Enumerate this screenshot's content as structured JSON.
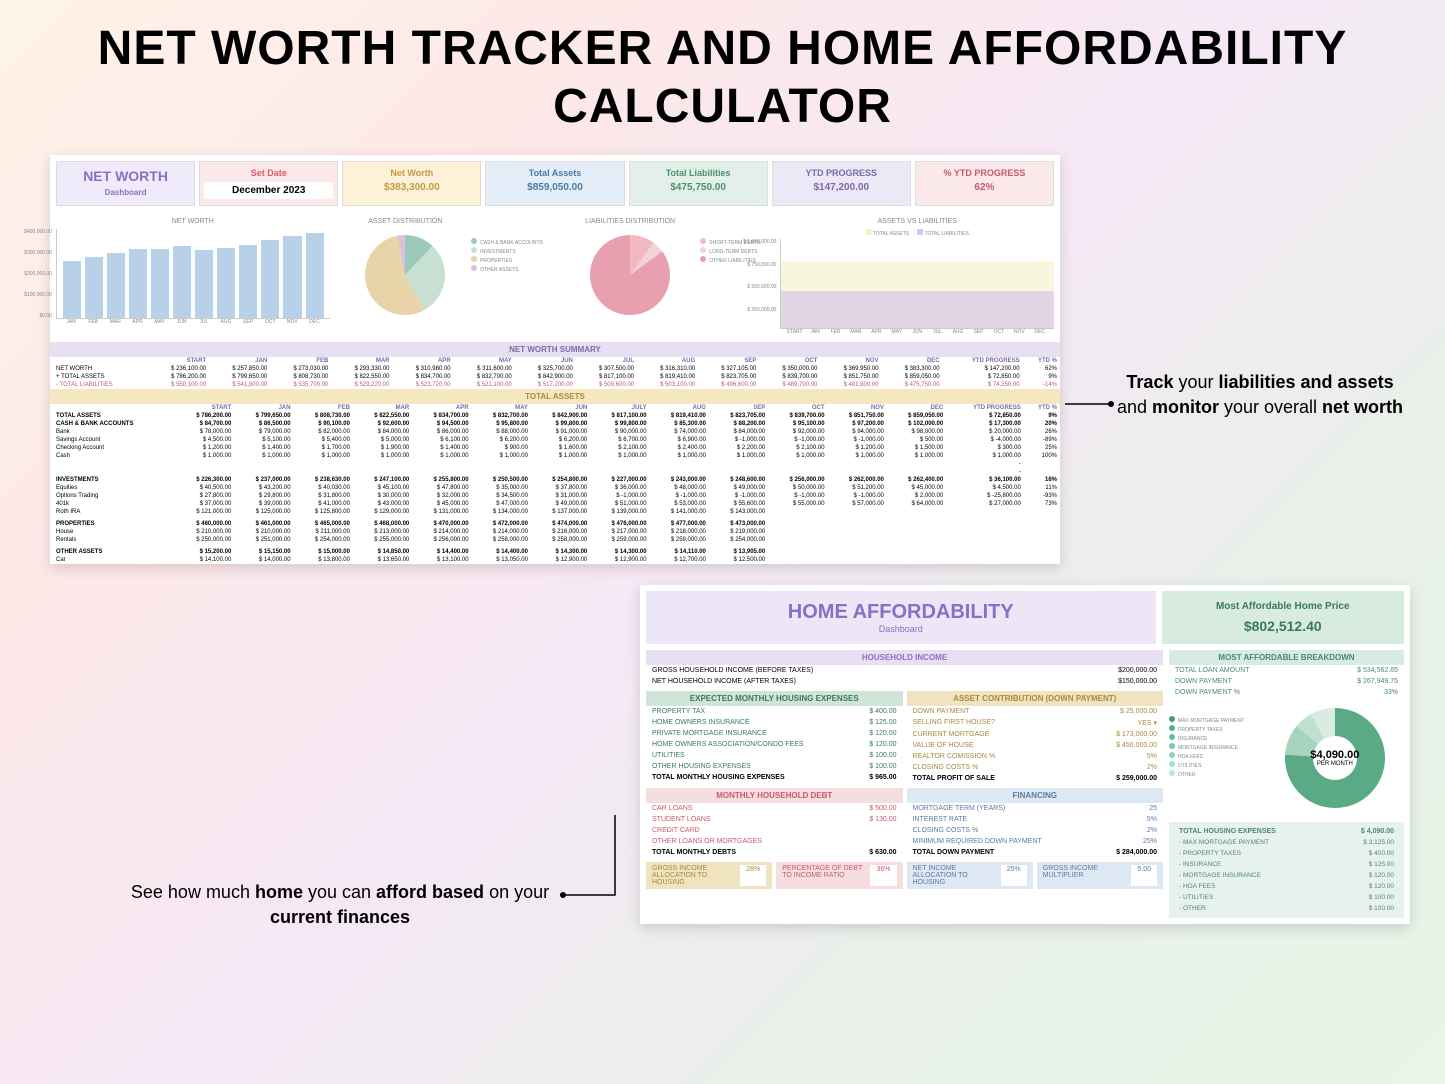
{
  "page_title": "NET WORTH TRACKER AND HOME AFFORDABILITY CALCULATOR",
  "callout_right": {
    "line1_pre": "Track",
    "line1_mid": " your ",
    "line1_b2": "liabilities and assets",
    "line2_mid": " and ",
    "line2_b": "monitor",
    "line2_post": " your overall ",
    "line3_b": "net worth"
  },
  "callout_left": {
    "pre": "See how much ",
    "b1": "home",
    "mid1": " you can ",
    "b2": "afford based",
    "mid2": " on your ",
    "b3": "current finances"
  },
  "networth": {
    "dashboard_label": "NET WORTH",
    "dashboard_sub": "Dashboard",
    "cards": {
      "set_date": {
        "label": "Set Date",
        "value": "December 2023"
      },
      "net_worth": {
        "label": "Net Worth",
        "value": "$383,300.00"
      },
      "total_assets": {
        "label": "Total Assets",
        "value": "$859,050.00"
      },
      "total_liabilities": {
        "label": "Total Liabilities",
        "value": "$475,750.00"
      },
      "ytd_progress": {
        "label": "YTD PROGRESS",
        "value": "$147,200.00"
      },
      "ytd_progress_pct": {
        "label": "% YTD PROGRESS",
        "value": "62%"
      }
    },
    "charts": {
      "networth_bar": {
        "title": "NET WORTH",
        "y_ticks": [
          "$400,000.00",
          "$300,000.00",
          "$200,000.00",
          "$100,000.00",
          "$0.00"
        ],
        "months": [
          "JAN",
          "FEB",
          "MAR",
          "APR",
          "MAY",
          "JUN",
          "JUL",
          "AUG",
          "SEP",
          "OCT",
          "NOV",
          "DEC"
        ],
        "values": [
          257850,
          273030,
          293330,
          310980,
          311600,
          325700,
          307500,
          316310,
          327105,
          350000,
          369950,
          383300
        ],
        "bar_color": "#b8d0e8"
      },
      "asset_pie": {
        "title": "ASSET DISTRIBUTION",
        "legend": [
          {
            "label": "CASH & BANK ACCOUNTS",
            "color": "#9cc9b8"
          },
          {
            "label": "INVESTMENTS",
            "color": "#c8e0d4"
          },
          {
            "label": "PROPERTIES",
            "color": "#e8d4a8"
          },
          {
            "label": "OTHER ASSETS",
            "color": "#d8c0e0"
          }
        ],
        "slices": [
          12,
          30,
          55,
          3
        ]
      },
      "liab_pie": {
        "title": "LIABILITIES DISTRIBUTION",
        "legend": [
          {
            "label": "SHORT-TERM DEBTS",
            "color": "#f4b8c0"
          },
          {
            "label": "LONG-TERM DEBTS",
            "color": "#f0d4d8"
          },
          {
            "label": "OTHER LIABILITIES",
            "color": "#e8a0b0"
          }
        ],
        "slices": [
          10,
          5,
          85
        ]
      },
      "assets_vs_liab": {
        "title": "ASSETS VS LIABILITIES",
        "y_ticks": [
          "$ 1,000,000.00",
          "$ 750,000.00",
          "$ 500,000.00",
          "$ 250,000.00",
          ""
        ],
        "legend": [
          {
            "label": "TOTAL ASSETS",
            "color": "#f5f0c8"
          },
          {
            "label": "TOTAL LIABILITIES",
            "color": "#d8c8e8"
          }
        ],
        "x_labels": [
          "START",
          "JAN",
          "FEB",
          "MAR",
          "APR",
          "MAY",
          "JUN",
          "JUL",
          "AUG",
          "SEP",
          "OCT",
          "NOV",
          "DEC"
        ]
      }
    },
    "summary": {
      "title": "NET WORTH SUMMARY",
      "columns": [
        "",
        "START",
        "JAN",
        "FEB",
        "MAR",
        "APR",
        "MAY",
        "JUN",
        "JUL",
        "AUG",
        "SEP",
        "OCT",
        "NOV",
        "DEC",
        "YTD PROGRESS",
        "YTD %"
      ],
      "rows": [
        {
          "label": "NET WORTH",
          "vals": [
            "236,100.00",
            "257,850.00",
            "273,030.00",
            "293,330.00",
            "310,980.00",
            "311,600.00",
            "325,700.00",
            "307,500.00",
            "316,310.00",
            "327,105.00",
            "350,000.00",
            "369,950.00",
            "383,300.00",
            "147,200.00",
            "62%"
          ]
        },
        {
          "label": "+ TOTAL ASSETS",
          "vals": [
            "786,200.00",
            "799,650.00",
            "808,730.00",
            "822,550.00",
            "834,700.00",
            "832,700.00",
            "842,900.00",
            "817,100.00",
            "819,410.00",
            "823,705.00",
            "839,700.00",
            "851,750.00",
            "859,050.00",
            "72,850.00",
            "9%"
          ]
        },
        {
          "label": "- TOTAL LIABILITIES",
          "vals": [
            "550,100.00",
            "541,800.00",
            "535,700.00",
            "529,220.00",
            "523,720.00",
            "521,100.00",
            "517,200.00",
            "509,600.00",
            "503,100.00",
            "496,600.00",
            "489,700.00",
            "481,800.00",
            "475,750.00",
            "74,350.00",
            "-14%"
          ],
          "cls": "red-text"
        }
      ]
    },
    "total_assets": {
      "title": "TOTAL ASSETS",
      "columns": [
        "",
        "START",
        "JAN",
        "FEB",
        "MAR",
        "APR",
        "MAY",
        "JUN",
        "JULY",
        "AUG",
        "SEP",
        "OCT",
        "NOV",
        "DEC",
        "YTD PROGRESS",
        "YTD %"
      ],
      "rows": [
        {
          "label": "TOTAL ASSETS",
          "vals": [
            "786,200.00",
            "799,650.00",
            "808,730.00",
            "822,550.00",
            "834,700.00",
            "832,700.00",
            "842,900.00",
            "817,100.00",
            "819,410.00",
            "823,705.00",
            "839,700.00",
            "851,750.00",
            "859,050.00",
            "72,850.00",
            "9%"
          ],
          "bold": true
        },
        {
          "label": "CASH & BANK ACCOUNTS",
          "vals": [
            "84,700.00",
            "86,500.00",
            "90,100.00",
            "92,600.00",
            "94,500.00",
            "95,800.00",
            "99,800.00",
            "99,800.00",
            "85,300.00",
            "88,200.00",
            "95,100.00",
            "97,200.00",
            "102,000.00",
            "17,300.00",
            "20%"
          ],
          "bold": true
        },
        {
          "label": "Bank",
          "vals": [
            "78,000.00",
            "79,000.00",
            "82,000.00",
            "84,000.00",
            "86,000.00",
            "88,000.00",
            "91,000.00",
            "90,000.00",
            "74,000.00",
            "84,000.00",
            "92,000.00",
            "94,000.00",
            "98,000.00",
            "20,000.00",
            "26%"
          ]
        },
        {
          "label": "Savings Account",
          "vals": [
            "4,500.00",
            "5,100.00",
            "5,400.00",
            "5,000.00",
            "6,100.00",
            "6,200.00",
            "6,200.00",
            "6,700.00",
            "6,900.00",
            "-1,000.00",
            "-1,000.00",
            "-1,000.00",
            "500.00",
            "-4,000.00",
            "-89%"
          ]
        },
        {
          "label": "Checking Account",
          "vals": [
            "1,200.00",
            "1,400.00",
            "1,700.00",
            "1,900.00",
            "1,400.00",
            "900.00",
            "1,600.00",
            "2,100.00",
            "2,400.00",
            "2,200.00",
            "2,100.00",
            "1,200.00",
            "1,500.00",
            "300.00",
            "25%"
          ]
        },
        {
          "label": "Cash",
          "vals": [
            "1,000.00",
            "1,000.00",
            "1,000.00",
            "1,000.00",
            "1,000.00",
            "1,000.00",
            "1,000.00",
            "1,000.00",
            "1,000.00",
            "1,000.00",
            "1,000.00",
            "1,000.00",
            "1,000.00",
            "1,000.00",
            "100%"
          ]
        },
        {
          "label": " ",
          "vals": [
            "",
            "",
            "",
            "",
            "",
            "",
            "",
            "",
            "",
            "",
            "",
            "",
            "",
            "-",
            ""
          ]
        },
        {
          "label": " ",
          "vals": [
            "",
            "",
            "",
            "",
            "",
            "",
            "",
            "",
            "",
            "",
            "",
            "",
            "",
            "-",
            ""
          ]
        },
        {
          "label": "INVESTMENTS",
          "vals": [
            "226,300.00",
            "237,000.00",
            "238,630.00",
            "247,100.00",
            "255,800.00",
            "250,500.00",
            "254,800.00",
            "227,000.00",
            "243,000.00",
            "248,600.00",
            "256,000.00",
            "262,000.00",
            "262,400.00",
            "36,100.00",
            "16%"
          ],
          "bold": true
        },
        {
          "label": "Equities",
          "vals": [
            "40,500.00",
            "43,200.00",
            "40,030.00",
            "45,100.00",
            "47,800.00",
            "35,000.00",
            "37,800.00",
            "36,000.00",
            "48,000.00",
            "49,000.00",
            "50,000.00",
            "51,200.00",
            "45,000.00",
            "4,500.00",
            "11%"
          ]
        },
        {
          "label": "Options Trading",
          "vals": [
            "27,800.00",
            "29,800.00",
            "31,800.00",
            "30,000.00",
            "32,000.00",
            "34,500.00",
            "31,000.00",
            "-1,000.00",
            "-1,000.00",
            "-1,000.00",
            "-1,000.00",
            "-1,000.00",
            "2,000.00",
            "-25,800.00",
            "-93%"
          ]
        },
        {
          "label": "401k",
          "vals": [
            "37,000.00",
            "39,000.00",
            "41,000.00",
            "43,000.00",
            "45,000.00",
            "47,000.00",
            "49,000.00",
            "51,000.00",
            "53,000.00",
            "55,600.00",
            "55,000.00",
            "57,000.00",
            "64,000.00",
            "27,000.00",
            "73%"
          ]
        },
        {
          "label": "Roth IRA",
          "vals": [
            "121,000.00",
            "125,000.00",
            "125,800.00",
            "129,000.00",
            "131,000.00",
            "134,000.00",
            "137,000.00",
            "139,000.00",
            "141,000.00",
            "143,000.00",
            "",
            "",
            "",
            "",
            ""
          ]
        },
        {
          "label": " ",
          "vals": [
            "",
            "",
            "",
            "",
            "",
            "",
            "",
            "",
            "",
            "",
            "",
            "",
            "",
            "",
            ""
          ]
        },
        {
          "label": " ",
          "vals": [
            "",
            "",
            "",
            "",
            "",
            "",
            "",
            "",
            "",
            "",
            "",
            "",
            "",
            "",
            ""
          ]
        },
        {
          "label": "PROPERTIES",
          "vals": [
            "460,000.00",
            "461,000.00",
            "465,000.00",
            "468,000.00",
            "470,000.00",
            "472,000.00",
            "474,000.00",
            "476,000.00",
            "477,000.00",
            "473,000.00",
            "",
            "",
            "",
            "",
            ""
          ],
          "bold": true
        },
        {
          "label": "House",
          "vals": [
            "210,000.00",
            "210,000.00",
            "211,000.00",
            "213,000.00",
            "214,000.00",
            "214,000.00",
            "216,000.00",
            "217,000.00",
            "218,000.00",
            "219,000.00",
            "",
            "",
            "",
            "",
            ""
          ]
        },
        {
          "label": "Rentals",
          "vals": [
            "250,000.00",
            "251,000.00",
            "254,000.00",
            "255,000.00",
            "256,000.00",
            "258,000.00",
            "258,000.00",
            "259,000.00",
            "259,000.00",
            "254,000.00",
            "",
            "",
            "",
            "",
            ""
          ]
        },
        {
          "label": " ",
          "vals": [
            "",
            "",
            "",
            "",
            "",
            "",
            "",
            "",
            "",
            "",
            "",
            "",
            "",
            "",
            ""
          ]
        },
        {
          "label": " ",
          "vals": [
            "",
            "",
            "",
            "",
            "",
            "",
            "",
            "",
            "",
            "",
            "",
            "",
            "",
            "",
            ""
          ]
        },
        {
          "label": "OTHER ASSETS",
          "vals": [
            "15,200.00",
            "15,150.00",
            "15,000.00",
            "14,850.00",
            "14,400.00",
            "14,400.00",
            "14,300.00",
            "14,300.00",
            "14,110.00",
            "13,905.00",
            "",
            "",
            "",
            "",
            ""
          ],
          "bold": true
        },
        {
          "label": "Car",
          "vals": [
            "14,100.00",
            "14,000.00",
            "13,800.00",
            "13,650.00",
            "13,100.00",
            "13,050.00",
            "12,900.00",
            "12,900.00",
            "12,700.00",
            "12,500.00",
            "",
            "",
            "",
            "",
            ""
          ]
        }
      ]
    }
  },
  "afford": {
    "title": "HOME AFFORDABILITY",
    "sub": "Dashboard",
    "price_label": "Most Affordable Home Price",
    "price_value": "$802,512.40",
    "household_income": {
      "title": "HOUSEHOLD INCOME",
      "rows": [
        {
          "k": "GROSS HOUSEHOLD INCOME (BEFORE TAXES)",
          "v": "$200,000.00"
        },
        {
          "k": "NET HOUSEHOLD INCOME (AFTER TAXES)",
          "v": "$150,000.00"
        }
      ]
    },
    "expenses": {
      "title": "EXPECTED MONTHLY HOUSING EXPENSES",
      "rows": [
        {
          "k": "PROPERTY TAX",
          "v": "$        400.00"
        },
        {
          "k": "HOME OWNERS INSURANCE",
          "v": "$        125.00"
        },
        {
          "k": "PRIVATE MORTGAGE INSURANCE",
          "v": "$        120.00"
        },
        {
          "k": "HOME OWNERS ASSOCIATION/CONDO FEES",
          "v": "$        120.00"
        },
        {
          "k": "UTILITIES",
          "v": "$        100.00"
        },
        {
          "k": "OTHER HOUSING EXPENSES",
          "v": "$        100.00"
        },
        {
          "k": "TOTAL MONTHLY HOUSING EXPENSES",
          "v": "$        965.00"
        }
      ]
    },
    "down_payment": {
      "title": "ASSET CONTRIBUTION (DOWN PAYMENT)",
      "rows": [
        {
          "k": "DOWN PAYMENT",
          "v": "$      25,000.00"
        },
        {
          "k": "SELLING FIRST HOUSE?",
          "v": "YES       ▾"
        },
        {
          "k": "CURRENT MORTGAGE",
          "v": "$    173,000.00"
        },
        {
          "k": "VALUE OF HOUSE",
          "v": "$    450,000.00"
        },
        {
          "k": "REALTOR COMISSION %",
          "v": "5%"
        },
        {
          "k": "CLOSING COSTS %",
          "v": "2%"
        },
        {
          "k": "TOTAL PROFIT OF SALE",
          "v": "$    259,000.00"
        }
      ]
    },
    "debt": {
      "title": "MONTHLY HOUSEHOLD DEBT",
      "rows": [
        {
          "k": "CAR LOANS",
          "v": "$        500.00"
        },
        {
          "k": "STUDENT LOANS",
          "v": "$        130.00"
        },
        {
          "k": "CREDIT CARD",
          "v": ""
        },
        {
          "k": "OTHER LOANS OR MORTGAGES",
          "v": ""
        },
        {
          "k": "TOTAL MONTHLY DEBTS",
          "v": "$        630.00"
        }
      ]
    },
    "financing": {
      "title": "FINANCING",
      "rows": [
        {
          "k": "MORTGAGE TERM (YEARS)",
          "v": "25"
        },
        {
          "k": "INTEREST RATE",
          "v": "5%"
        },
        {
          "k": "CLOSING COSTS %",
          "v": "2%"
        },
        {
          "k": "MINIMUM REQUIRED DOWN PAYMENT",
          "v": "25%"
        },
        {
          "k": "TOTAL DOWN PAYMENT",
          "v": "$    284,000.00"
        }
      ]
    },
    "bottom_boxes": [
      {
        "k": "GROSS INCOME ALLOCATION TO HOUSING",
        "v": "28%",
        "cls": "hdr-gold"
      },
      {
        "k": "PERCENTAGE OF DEBT TO INCOME RATIO",
        "v": "36%",
        "cls": "hdr-pink"
      },
      {
        "k": "NET INCOME ALLOCATION TO HOUSING",
        "v": "25%",
        "cls": "hdr-blue"
      },
      {
        "k": "GROSS INCOME MULTIPLIER",
        "v": "5.00",
        "cls": "hdr-blue"
      }
    ],
    "breakdown": {
      "title": "MOST AFFORDABLE BREAKDOWN",
      "rows": [
        {
          "k": "TOTAL LOAN AMOUNT",
          "v": "$        534,562.65"
        },
        {
          "k": "DOWN PAYMENT",
          "v": "$        267,949.75"
        },
        {
          "k": "DOWN PAYMENT %",
          "v": "33%"
        }
      ],
      "donut_center": "$4,090.00",
      "donut_sub": "PER MONTH",
      "legend": [
        "MAX MORTGAGE PAYMENT",
        "PROPERTY TAXES",
        "INSURANCE",
        "MORTGAGE INSURANCE",
        "HOA FEES",
        "UTILITIES",
        "OTHER"
      ],
      "expenses": {
        "title_row": {
          "k": "TOTAL HOUSING EXPENSES",
          "v": "$           4,090.00"
        },
        "rows": [
          {
            "k": "- MAX MORTGAGE PAYMENT",
            "v": "$           3,125.00"
          },
          {
            "k": "- PROPERTY TAXES",
            "v": "$              400.00"
          },
          {
            "k": "- INSURANCE",
            "v": "$              125.00"
          },
          {
            "k": "- MORTGAGE INSURANCE",
            "v": "$              120.00"
          },
          {
            "k": "- HOA FEES",
            "v": "$              120.00"
          },
          {
            "k": "- UTILITIES",
            "v": "$              100.00"
          },
          {
            "k": "- OTHER",
            "v": "$              100.00"
          }
        ]
      }
    }
  }
}
